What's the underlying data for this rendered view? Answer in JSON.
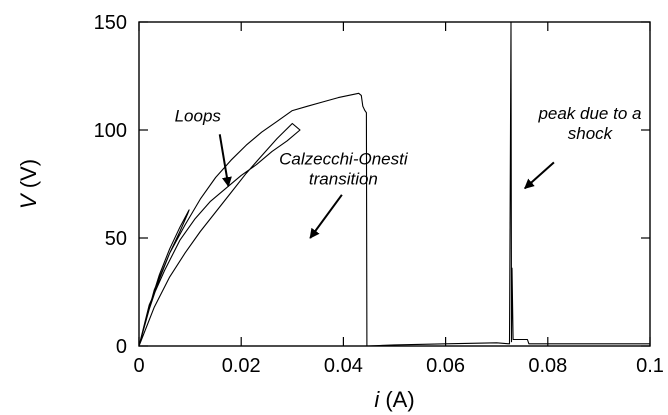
{
  "chart_data": {
    "type": "line",
    "title": "",
    "xlabel_var": "i",
    "xlabel_unit": " (A)",
    "ylabel_var": "V",
    "ylabel_unit": " (V)",
    "xlim": [
      0,
      0.1
    ],
    "ylim": [
      0,
      150
    ],
    "x_ticks": [
      0,
      0.02,
      0.04,
      0.06,
      0.08,
      0.1
    ],
    "x_tick_labels": [
      "0",
      "0.02",
      "0.04",
      "0.06",
      "0.08",
      "0.1"
    ],
    "y_ticks": [
      0,
      50,
      100,
      150
    ],
    "y_tick_labels": [
      "0",
      "50",
      "100",
      "150"
    ],
    "grid": false,
    "colors": {
      "line": "#000000",
      "axes": "#000000",
      "background": "#ffffff"
    },
    "series": [
      {
        "x": [
          0,
          0.002,
          0.004,
          0.006,
          0.008,
          0.0095,
          0.0098,
          0.008,
          0.006,
          0.004,
          0.002,
          0,
          0.002,
          0.005,
          0.008,
          0.011,
          0.014,
          0.017,
          0.02,
          0.023,
          0.026,
          0.029,
          0.0315,
          0.03,
          0.027,
          0.024,
          0.021,
          0.018,
          0.015,
          0.012,
          0.009,
          0.006,
          0.003,
          0,
          0.003,
          0.006,
          0.009,
          0.012,
          0.015,
          0.018,
          0.021,
          0.024,
          0.027,
          0.03,
          0.033,
          0.036,
          0.039,
          0.041,
          0.043,
          0.0435,
          0.0438,
          0.0442,
          0.0445,
          0.0446,
          0.05,
          0.06,
          0.07,
          0.0725,
          0.0728,
          0.0729,
          0.073,
          0.0732,
          0.0735,
          0.076,
          0.0763,
          0.08,
          0.09,
          0.1
        ],
        "y": [
          0,
          17,
          31,
          43,
          53,
          61,
          63,
          55,
          45,
          33,
          18,
          0,
          19,
          35,
          49,
          59,
          67,
          73,
          79,
          84,
          90,
          95,
          100,
          103,
          96,
          88,
          80,
          71,
          62,
          53,
          43,
          32,
          18,
          0,
          26,
          43,
          56,
          68,
          78,
          86,
          93,
          99,
          104,
          109,
          111,
          113,
          115,
          116,
          117,
          116,
          111,
          109,
          108,
          0,
          0.5,
          1,
          1.5,
          1,
          150,
          2,
          36,
          3,
          3,
          3,
          1,
          1,
          1,
          1
        ]
      }
    ],
    "annotations": [
      {
        "text_lines": [
          "Loops"
        ],
        "x": 0.0115,
        "y": 104,
        "arrow_from": [
          0.0158,
          98
        ],
        "arrow_to": [
          0.0175,
          74
        ]
      },
      {
        "text_lines": [
          "Calzecchi-Onesti",
          "transition"
        ],
        "x": 0.04,
        "y": 84,
        "arrow_from": [
          0.0397,
          70
        ],
        "arrow_to": [
          0.0335,
          50
        ]
      },
      {
        "text_lines": [
          "peak due to a",
          "shock"
        ],
        "x": 0.08825,
        "y": 105,
        "arrow_from": [
          0.0812,
          85
        ],
        "arrow_to": [
          0.0755,
          73
        ]
      }
    ]
  }
}
